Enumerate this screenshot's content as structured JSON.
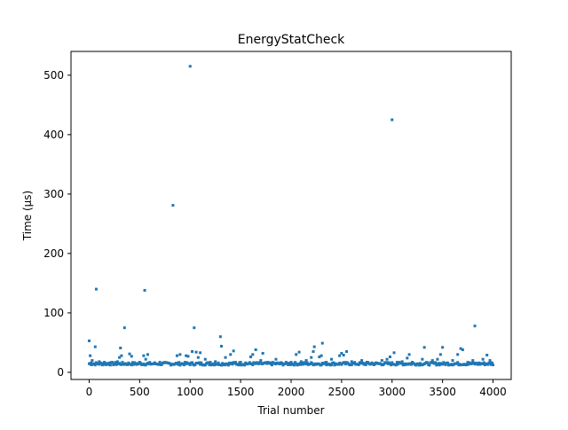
{
  "chart_data": {
    "type": "scatter",
    "title": "EnergyStatCheck",
    "xlabel": "Trial number",
    "ylabel": "Time (µs)",
    "xlim": [
      -180,
      4180
    ],
    "ylim": [
      -12,
      540
    ],
    "xticks": [
      0,
      500,
      1000,
      1500,
      2000,
      2500,
      3000,
      3500,
      4000
    ],
    "yticks": [
      0,
      100,
      200,
      300,
      400,
      500
    ],
    "grid": false,
    "marker_color": "#1f77b4",
    "baseline": {
      "x_start": 0,
      "x_end": 4000,
      "y_low": 12,
      "y_high": 17
    },
    "outliers": [
      [
        0,
        53
      ],
      [
        10,
        28
      ],
      [
        20,
        16
      ],
      [
        30,
        20
      ],
      [
        60,
        43
      ],
      [
        70,
        140
      ],
      [
        100,
        18
      ],
      [
        150,
        17
      ],
      [
        170,
        15
      ],
      [
        200,
        16
      ],
      [
        280,
        18
      ],
      [
        300,
        25
      ],
      [
        310,
        41
      ],
      [
        320,
        28
      ],
      [
        350,
        75
      ],
      [
        400,
        31
      ],
      [
        420,
        27
      ],
      [
        450,
        15
      ],
      [
        500,
        17
      ],
      [
        540,
        28
      ],
      [
        550,
        138
      ],
      [
        560,
        22
      ],
      [
        580,
        30
      ],
      [
        600,
        14
      ],
      [
        700,
        17
      ],
      [
        750,
        16
      ],
      [
        830,
        281
      ],
      [
        870,
        28
      ],
      [
        900,
        30
      ],
      [
        960,
        28
      ],
      [
        980,
        27
      ],
      [
        1000,
        515
      ],
      [
        1020,
        35
      ],
      [
        1040,
        75
      ],
      [
        1060,
        34
      ],
      [
        1080,
        25
      ],
      [
        1100,
        33
      ],
      [
        1150,
        22
      ],
      [
        1200,
        17
      ],
      [
        1250,
        18
      ],
      [
        1300,
        60
      ],
      [
        1310,
        44
      ],
      [
        1350,
        25
      ],
      [
        1400,
        30
      ],
      [
        1430,
        36
      ],
      [
        1450,
        17
      ],
      [
        1500,
        17
      ],
      [
        1550,
        16
      ],
      [
        1600,
        26
      ],
      [
        1620,
        30
      ],
      [
        1650,
        38
      ],
      [
        1700,
        20
      ],
      [
        1720,
        32
      ],
      [
        1800,
        16
      ],
      [
        1850,
        22
      ],
      [
        1900,
        15
      ],
      [
        2000,
        17
      ],
      [
        2050,
        30
      ],
      [
        2080,
        34
      ],
      [
        2100,
        18
      ],
      [
        2150,
        20
      ],
      [
        2200,
        25
      ],
      [
        2220,
        35
      ],
      [
        2230,
        43
      ],
      [
        2280,
        26
      ],
      [
        2300,
        28
      ],
      [
        2310,
        49
      ],
      [
        2350,
        17
      ],
      [
        2400,
        22
      ],
      [
        2480,
        28
      ],
      [
        2500,
        32
      ],
      [
        2520,
        29
      ],
      [
        2550,
        35
      ],
      [
        2600,
        18
      ],
      [
        2700,
        20
      ],
      [
        2750,
        17
      ],
      [
        2800,
        16
      ],
      [
        2900,
        20
      ],
      [
        2950,
        22
      ],
      [
        2980,
        26
      ],
      [
        3000,
        425
      ],
      [
        3020,
        33
      ],
      [
        3050,
        17
      ],
      [
        3100,
        18
      ],
      [
        3150,
        24
      ],
      [
        3170,
        30
      ],
      [
        3200,
        17
      ],
      [
        3300,
        22
      ],
      [
        3320,
        42
      ],
      [
        3400,
        20
      ],
      [
        3450,
        22
      ],
      [
        3480,
        30
      ],
      [
        3500,
        42
      ],
      [
        3550,
        16
      ],
      [
        3600,
        20
      ],
      [
        3650,
        30
      ],
      [
        3680,
        40
      ],
      [
        3700,
        38
      ],
      [
        3750,
        17
      ],
      [
        3800,
        20
      ],
      [
        3820,
        78
      ],
      [
        3900,
        22
      ],
      [
        3940,
        29
      ],
      [
        3970,
        20
      ],
      [
        3990,
        16
      ]
    ]
  }
}
